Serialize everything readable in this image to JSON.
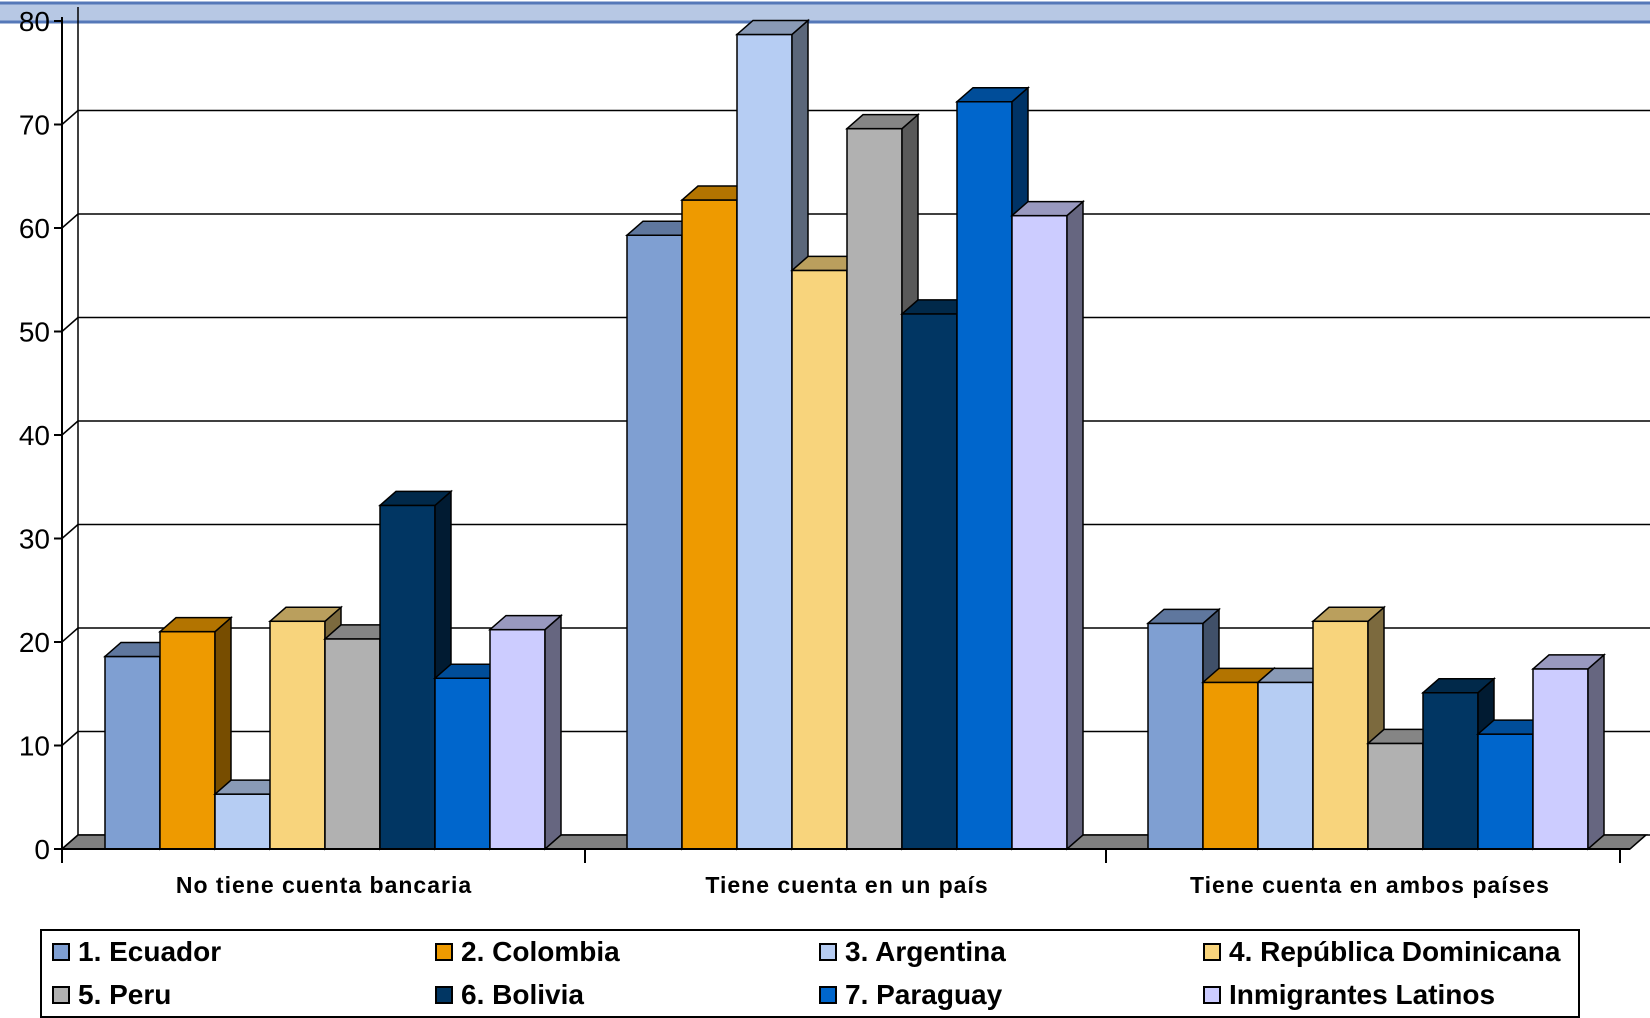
{
  "chart_data": {
    "type": "bar",
    "title": "",
    "xlabel": "",
    "ylabel": "",
    "ylim": [
      0,
      80
    ],
    "y_ticks": [
      "0",
      "10",
      "20",
      "30",
      "40",
      "50",
      "60",
      "70",
      "80"
    ],
    "categories": [
      "No tiene cuenta bancaria",
      "Tiene cuenta en un país",
      "Tiene cuenta en ambos países"
    ],
    "grid": true,
    "legend": "bottom",
    "series": [
      {
        "name": "1. Ecuador",
        "color": "#7f9fd2",
        "values": [
          18.6,
          59.3,
          21.8
        ]
      },
      {
        "name": "2. Colombia",
        "color": "#ee9a00",
        "values": [
          21.0,
          62.7,
          16.1
        ]
      },
      {
        "name": "3. Argentina",
        "color": "#b6cdf3",
        "values": [
          5.3,
          78.7,
          16.1
        ]
      },
      {
        "name": "4. República Dominicana",
        "color": "#f8d47c",
        "values": [
          22.0,
          55.9,
          22.0
        ]
      },
      {
        "name": "5. Peru",
        "color": "#b1b1b1",
        "values": [
          20.3,
          69.6,
          10.2
        ]
      },
      {
        "name": "6. Bolivia",
        "color": "#013663",
        "values": [
          33.2,
          51.7,
          15.1
        ]
      },
      {
        "name": "7. Paraguay",
        "color": "#0066cc",
        "values": [
          16.5,
          72.2,
          11.1
        ]
      },
      {
        "name": "Inmigrantes Latinos",
        "color": "#ccccff",
        "values": [
          21.2,
          61.2,
          17.4
        ]
      }
    ]
  }
}
